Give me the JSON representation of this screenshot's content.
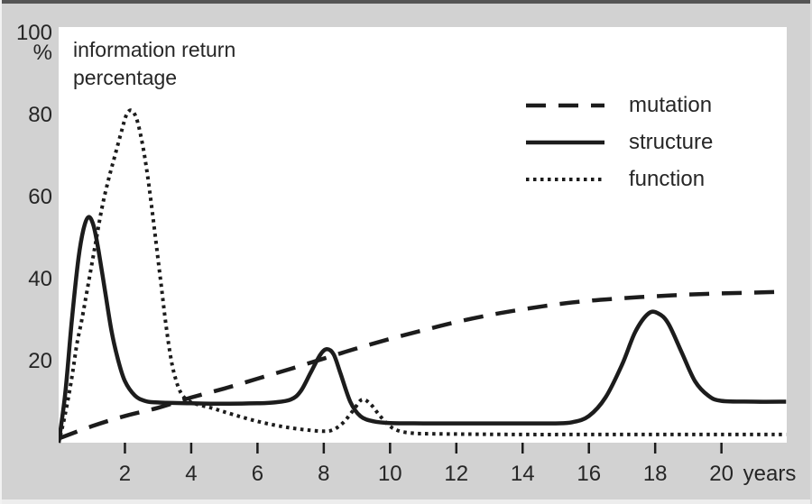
{
  "chart_data": {
    "type": "line",
    "title": "information return\npercentage",
    "x_axis": {
      "label": "years",
      "range": [
        0,
        22
      ],
      "ticks": [
        2,
        4,
        6,
        8,
        10,
        12,
        14,
        16,
        18,
        20
      ]
    },
    "y_axis": {
      "unit": "%",
      "range": [
        0,
        100
      ],
      "ticks": [
        100,
        80,
        60,
        40,
        20
      ]
    },
    "grid": false,
    "legend_position": "top-right",
    "series": [
      {
        "name": "mutation",
        "style": "dashed",
        "points": [
          [
            0,
            1
          ],
          [
            1,
            4
          ],
          [
            2,
            6.5
          ],
          [
            3,
            8.5
          ],
          [
            4,
            11
          ],
          [
            5,
            13.2
          ],
          [
            6,
            15.6
          ],
          [
            7,
            18
          ],
          [
            8,
            20.5
          ],
          [
            9,
            23
          ],
          [
            10,
            25.3
          ],
          [
            11,
            27.4
          ],
          [
            12,
            29.4
          ],
          [
            13,
            31.1
          ],
          [
            14,
            32.5
          ],
          [
            15,
            33.7
          ],
          [
            16,
            34.6
          ],
          [
            17,
            35.2
          ],
          [
            18,
            35.7
          ],
          [
            19,
            36.1
          ],
          [
            20,
            36.4
          ],
          [
            21,
            36.6
          ],
          [
            21.95,
            36.8
          ]
        ]
      },
      {
        "name": "structure",
        "style": "solid",
        "points": [
          [
            0,
            0
          ],
          [
            0.2,
            12
          ],
          [
            0.4,
            30
          ],
          [
            0.6,
            45
          ],
          [
            0.75,
            52
          ],
          [
            0.9,
            55
          ],
          [
            1.05,
            53
          ],
          [
            1.2,
            47
          ],
          [
            1.4,
            37
          ],
          [
            1.6,
            27
          ],
          [
            1.8,
            20
          ],
          [
            2.0,
            15
          ],
          [
            2.3,
            11.5
          ],
          [
            2.6,
            10.2
          ],
          [
            3,
            9.8
          ],
          [
            4,
            9.6
          ],
          [
            5,
            9.5
          ],
          [
            6,
            9.6
          ],
          [
            6.5,
            9.8
          ],
          [
            7,
            10.5
          ],
          [
            7.3,
            12.5
          ],
          [
            7.6,
            17
          ],
          [
            7.9,
            21.5
          ],
          [
            8.1,
            22.8
          ],
          [
            8.3,
            21.5
          ],
          [
            8.5,
            17
          ],
          [
            8.8,
            10
          ],
          [
            9.1,
            6.5
          ],
          [
            9.5,
            5.2
          ],
          [
            10,
            4.8
          ],
          [
            11,
            4.7
          ],
          [
            12,
            4.7
          ],
          [
            13,
            4.7
          ],
          [
            14,
            4.7
          ],
          [
            15,
            4.7
          ],
          [
            15.5,
            5
          ],
          [
            16,
            6.5
          ],
          [
            16.5,
            11
          ],
          [
            17,
            19
          ],
          [
            17.4,
            27
          ],
          [
            17.8,
            31.5
          ],
          [
            18.1,
            31.5
          ],
          [
            18.4,
            29
          ],
          [
            18.8,
            22
          ],
          [
            19.2,
            15
          ],
          [
            19.6,
            11.5
          ],
          [
            20,
            10.2
          ],
          [
            21,
            10
          ],
          [
            21.95,
            10
          ]
        ]
      },
      {
        "name": "function",
        "style": "dotted",
        "points": [
          [
            0,
            0
          ],
          [
            0.2,
            7
          ],
          [
            0.4,
            16
          ],
          [
            0.55,
            24
          ],
          [
            0.7,
            30
          ],
          [
            0.9,
            39
          ],
          [
            1.1,
            48
          ],
          [
            1.3,
            57
          ],
          [
            1.5,
            64
          ],
          [
            1.7,
            70
          ],
          [
            1.9,
            76
          ],
          [
            2.05,
            80
          ],
          [
            2.2,
            81
          ],
          [
            2.35,
            79
          ],
          [
            2.5,
            74
          ],
          [
            2.65,
            67
          ],
          [
            2.8,
            58
          ],
          [
            2.95,
            48
          ],
          [
            3.1,
            38
          ],
          [
            3.25,
            28
          ],
          [
            3.4,
            20
          ],
          [
            3.55,
            15
          ],
          [
            3.7,
            12
          ],
          [
            3.9,
            10.3
          ],
          [
            4.2,
            9.3
          ],
          [
            4.6,
            8.5
          ],
          [
            5,
            7.5
          ],
          [
            5.5,
            6.3
          ],
          [
            6,
            5.2
          ],
          [
            6.5,
            4.3
          ],
          [
            7,
            3.6
          ],
          [
            7.5,
            3.1
          ],
          [
            8,
            2.8
          ],
          [
            8.3,
            3.2
          ],
          [
            8.6,
            5
          ],
          [
            8.9,
            8
          ],
          [
            9.15,
            10.5
          ],
          [
            9.4,
            9.5
          ],
          [
            9.7,
            6.5
          ],
          [
            10,
            4
          ],
          [
            10.3,
            2.8
          ],
          [
            10.7,
            2.3
          ],
          [
            11,
            2.2
          ],
          [
            12,
            2.1
          ],
          [
            14,
            2
          ],
          [
            16,
            2
          ],
          [
            18,
            2
          ],
          [
            20,
            2
          ],
          [
            21.95,
            2
          ]
        ]
      }
    ]
  },
  "colors": {
    "background": "#d2d2d2",
    "plot_background": "#ffffff",
    "curve": "#1c1c1c",
    "text": "#262626"
  }
}
